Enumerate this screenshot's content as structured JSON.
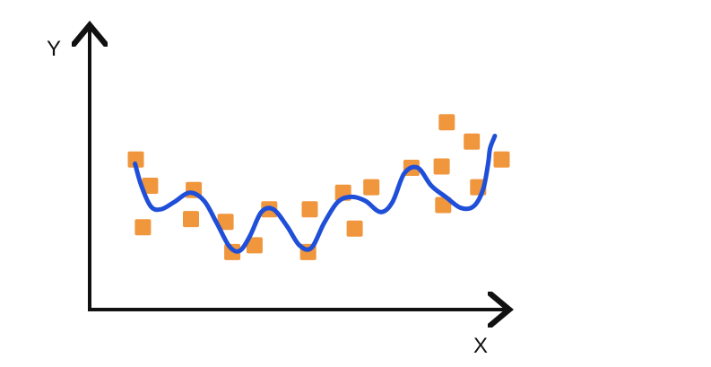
{
  "chart_data": {
    "type": "scatter",
    "xlabel": "X",
    "ylabel": "Y",
    "xlim": [
      0,
      100
    ],
    "ylim": [
      0,
      100
    ],
    "grid": false,
    "points": [
      {
        "x": 6.2,
        "y": 63.2
      },
      {
        "x": 9.8,
        "y": 50.0
      },
      {
        "x": 8.0,
        "y": 29.2
      },
      {
        "x": 20.1,
        "y": 33.3
      },
      {
        "x": 20.8,
        "y": 47.9
      },
      {
        "x": 28.8,
        "y": 31.9
      },
      {
        "x": 30.5,
        "y": 16.7
      },
      {
        "x": 36.1,
        "y": 20.1
      },
      {
        "x": 39.8,
        "y": 38.2
      },
      {
        "x": 49.6,
        "y": 16.7
      },
      {
        "x": 50.0,
        "y": 38.2
      },
      {
        "x": 58.4,
        "y": 46.5
      },
      {
        "x": 61.3,
        "y": 28.5
      },
      {
        "x": 65.5,
        "y": 49.3
      },
      {
        "x": 75.6,
        "y": 59.0
      },
      {
        "x": 83.2,
        "y": 59.7
      },
      {
        "x": 83.6,
        "y": 40.3
      },
      {
        "x": 84.5,
        "y": 81.9
      },
      {
        "x": 90.8,
        "y": 72.2
      },
      {
        "x": 92.4,
        "y": 49.3
      },
      {
        "x": 98.3,
        "y": 63.2
      }
    ],
    "fit_curve": {
      "x": [
        6.0,
        7.6,
        10.0,
        12.6,
        15.8,
        19.8,
        23.4,
        26.6,
        29.8,
        32.4,
        35.0,
        37.8,
        40.8,
        44.2,
        47.4,
        50.4,
        53.6,
        57.0,
        60.4,
        64.0,
        67.8,
        70.8,
        73.8,
        77.2,
        80.6,
        84.2,
        88.0,
        91.2,
        93.6,
        94.9,
        95.4,
        96.6
      ],
      "y": [
        61.1,
        50.0,
        39.6,
        38.2,
        41.7,
        46.5,
        42.4,
        31.2,
        19.4,
        17.4,
        25.0,
        36.8,
        38.2,
        29.9,
        20.1,
        18.8,
        31.2,
        41.7,
        44.4,
        42.4,
        36.8,
        41.7,
        56.2,
        59.0,
        50.0,
        44.4,
        38.9,
        39.6,
        47.9,
        61.1,
        68.8,
        75.0
      ]
    },
    "colors": {
      "points": "#f0963c",
      "curve": "#1f4fd8",
      "axes": "#111111"
    }
  }
}
